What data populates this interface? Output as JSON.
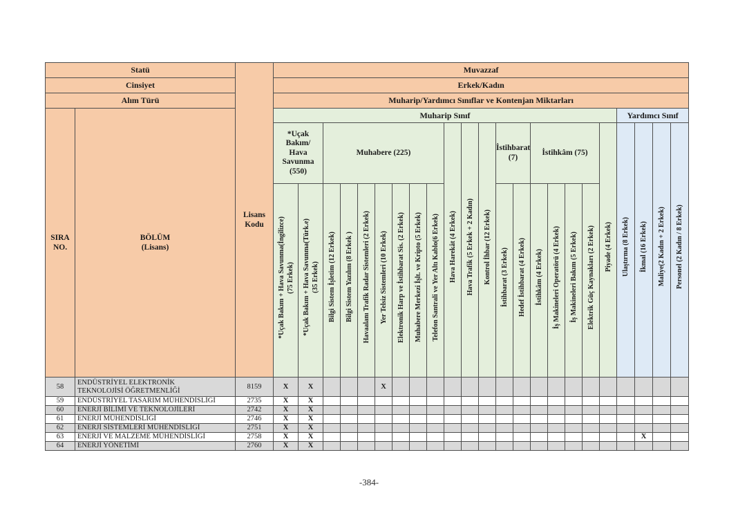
{
  "document": {
    "page_number": "-384-"
  },
  "colors": {
    "header_peach": "#F7CBA8",
    "muharip_green": "#E4EFDC",
    "yardimci_blue": "#DEEAF6",
    "row_stripe_gray": "#D9D9D9",
    "grid_border": "#4D4D4D"
  },
  "table": {
    "corner": {
      "statu": "Statü",
      "cinsiyet": "Cinsiyet",
      "alim_turu": "Alım Türü",
      "sira_no": "SIRA\nNO.",
      "bolum": "BÖLÜM\n(Lisans)",
      "lisans_kodu": "Lisans\nKodu"
    },
    "top": {
      "muvazzaf": "Muvazzaf",
      "erkek_kadin": "Erkek/Kadın",
      "siniflar": "Muharip/Yardımcı Sınıflar ve Kontenjan Miktarları",
      "muharip_sinif": "Muharip Sınıf",
      "yardimci_sinif": "Yardımcı Sınıf"
    },
    "groups": [
      {
        "label": "*Uçak\nBakım/\nHava\nSavunma\n(550)"
      },
      {
        "label": "Muhabere (225)"
      },
      {
        "label": "İstihbarat\n(7)"
      },
      {
        "label": "İstihkâm (75)"
      }
    ],
    "columns": [
      {
        "label": "*Uçak Bakım + Hava Savunma(İngilizce)\n(75 Erkek)",
        "section": "muharip"
      },
      {
        "label": "*Uçak Bakım + Hava Savunma(Türk.e)\n(35 Erkek)",
        "section": "muharip"
      },
      {
        "label": "Bilgi Sistem İşletim (12 Erkek)",
        "section": "muharip"
      },
      {
        "label": "Bilgi Sistem Yazılım (8 Erkek )",
        "section": "muharip"
      },
      {
        "label": "Havaalanı Trafik Radar Sistemleri (2 Erkek)",
        "section": "muharip"
      },
      {
        "label": "Yer Telsiz Sistemleri (10 Erkek)",
        "section": "muharip"
      },
      {
        "label": "Elektronik Harp ve İstihbarat Sis. (2 Erkek)",
        "section": "muharip"
      },
      {
        "label": "Muhabere Merkezi İşlt. ve Kripto (5 Erkek)",
        "section": "muharip"
      },
      {
        "label": "Telefon Santrali ve Yer Altı Kablo(6 Erkek)",
        "section": "muharip"
      },
      {
        "label": "Hava Harekât (4 Erkek)",
        "section": "muharip"
      },
      {
        "label": "Hava Trafik (5 Erkek + 2 Kadın)",
        "section": "muharip"
      },
      {
        "label": "Kontrol İhbar (12 Erkek)",
        "section": "muharip"
      },
      {
        "label": "İstihbarat (3 Erkek)",
        "section": "muharip"
      },
      {
        "label": "Hedef İstihbarat (4 Erkek)",
        "section": "muharip"
      },
      {
        "label": "İstihkâm (4 Erkek)",
        "section": "muharip"
      },
      {
        "label": "İş Makineleri Operatörü (4 Erkek)",
        "section": "muharip"
      },
      {
        "label": "İş Makineleri Bakım (5 Erkek)",
        "section": "muharip"
      },
      {
        "label": "Elektrik Güç Kaynakları (2 Erkek)",
        "section": "muharip"
      },
      {
        "label": "Piyade (4 Erkek)",
        "section": "muharip"
      },
      {
        "label": "Ulaştırma (8 Erkek)",
        "section": "yardimci"
      },
      {
        "label": "İkmal (16 Erkek)",
        "section": "yardimci"
      },
      {
        "label": "Maliye(2 Kadın + 2 Erkek)",
        "section": "yardimci"
      },
      {
        "label": "Personel (2 Kadın / 8 Erkek)",
        "section": "yardimci"
      }
    ],
    "mark_symbol": "X",
    "rows": [
      {
        "sira": "58",
        "bolum": "ENDÜSTRİYEL ELEKTRONİK\nTEKNOLOJİSİ ÖĞRETMENLİĞİ",
        "kod": "8159",
        "x_cols": [
          1,
          2,
          6
        ]
      },
      {
        "sira": "59",
        "bolum": "ENDÜSTRİYEL TASARIM MÜHENDİSLİĞİ",
        "kod": "2735",
        "x_cols": [
          1,
          2
        ]
      },
      {
        "sira": "60",
        "bolum": "ENERJİ BİLİMİ VE TEKNOLOJİLERİ",
        "kod": "2742",
        "x_cols": [
          1,
          2
        ]
      },
      {
        "sira": "61",
        "bolum": "ENERJİ MÜHENDİSLİĞİ",
        "kod": "2746",
        "x_cols": [
          1,
          2
        ]
      },
      {
        "sira": "62",
        "bolum": "ENERJİ SİSTEMLERİ MÜHENDİSLİĞİ",
        "kod": "2751",
        "x_cols": [
          1,
          2
        ]
      },
      {
        "sira": "63",
        "bolum": "ENERJİ VE MALZEME MÜHENDİSLİĞİ",
        "kod": "2758",
        "x_cols": [
          1,
          2,
          21
        ]
      },
      {
        "sira": "64",
        "bolum": "ENERJİ YÖNETİMİ",
        "kod": "2760",
        "x_cols": [
          1,
          2
        ]
      }
    ]
  }
}
